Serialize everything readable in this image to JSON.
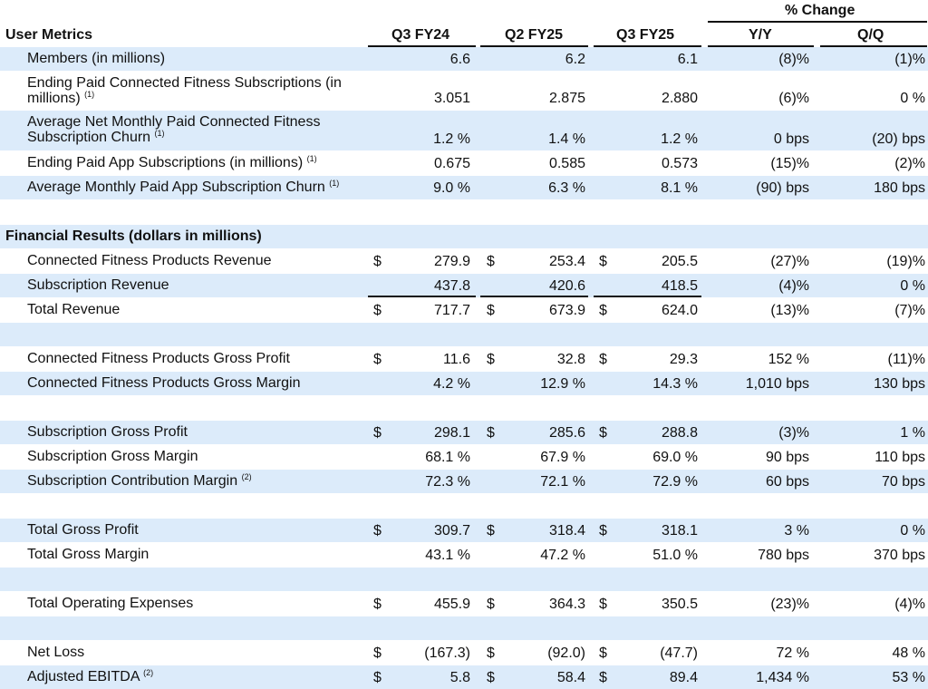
{
  "header": {
    "pct_change": "% Change",
    "section_title": "User Metrics",
    "col_q3fy24": "Q3 FY24",
    "col_q2fy25": "Q2 FY25",
    "col_q3fy25": "Q3 FY25",
    "col_yy": "Y/Y",
    "col_qq": "Q/Q"
  },
  "fin_title": "Financial Results (dollars in millions)",
  "rows": [
    {
      "key": "members",
      "shade": true,
      "label": [
        "Members (in millions)"
      ],
      "note": "",
      "dollar": false,
      "v": [
        "6.6",
        "6.2",
        "6.1"
      ],
      "yy": "(8)%",
      "qq": "(1)%"
    },
    {
      "key": "ending-paid-cf-subs",
      "shade": false,
      "label": [
        "Ending Paid Connected Fitness Subscriptions (in",
        "millions)"
      ],
      "note": "(1)",
      "dollar": false,
      "v": [
        "3.051",
        "2.875",
        "2.880"
      ],
      "yy": "(6)%",
      "qq": "0 %"
    },
    {
      "key": "avg-cf-churn",
      "shade": true,
      "label": [
        "Average Net Monthly Paid Connected Fitness",
        "Subscription Churn"
      ],
      "note": "(1)",
      "dollar": false,
      "v": [
        "1.2 %",
        "1.4 %",
        "1.2 %"
      ],
      "yy": "0 bps",
      "qq": "(20) bps"
    },
    {
      "key": "ending-paid-app-subs",
      "shade": false,
      "label": [
        "Ending Paid App Subscriptions (in millions)"
      ],
      "note": "(1)",
      "dollar": false,
      "v": [
        "0.675",
        "0.585",
        "0.573"
      ],
      "yy": "(15)%",
      "qq": "(2)%"
    },
    {
      "key": "avg-app-churn",
      "shade": true,
      "label": [
        "Average Monthly Paid App Subscription Churn"
      ],
      "note": "(1)",
      "dollar": false,
      "v": [
        "9.0 %",
        "6.3 %",
        "8.1 %"
      ],
      "yy": "(90) bps",
      "qq": "180 bps"
    },
    {
      "key": "cf-products-revenue",
      "shade": false,
      "label": [
        "Connected Fitness Products Revenue"
      ],
      "note": "",
      "dollar": true,
      "v": [
        "279.9",
        "253.4",
        "205.5"
      ],
      "yy": "(27)%",
      "qq": "(19)%"
    },
    {
      "key": "subscription-revenue",
      "shade": true,
      "label": [
        "Subscription Revenue"
      ],
      "note": "",
      "dollar": false,
      "v": [
        "437.8",
        "420.6",
        "418.5"
      ],
      "yy": "(4)%",
      "qq": "0 %"
    },
    {
      "key": "total-revenue",
      "shade": false,
      "label": [
        "Total Revenue"
      ],
      "note": "",
      "dollar": true,
      "v": [
        "717.7",
        "673.9",
        "624.0"
      ],
      "yy": "(13)%",
      "qq": "(7)%"
    },
    {
      "key": "cf-products-gross-profit",
      "shade": false,
      "label": [
        "Connected Fitness Products Gross Profit"
      ],
      "note": "",
      "dollar": true,
      "v": [
        "11.6",
        "32.8",
        "29.3"
      ],
      "yy": "152 %",
      "qq": "(11)%"
    },
    {
      "key": "cf-products-gross-margin",
      "shade": true,
      "label": [
        "Connected Fitness Products Gross Margin"
      ],
      "note": "",
      "dollar": false,
      "v": [
        "4.2 %",
        "12.9 %",
        "14.3 %"
      ],
      "yy": "1,010 bps",
      "qq": "130 bps"
    },
    {
      "key": "subscription-gross-profit",
      "shade": true,
      "label": [
        "Subscription Gross Profit"
      ],
      "note": "",
      "dollar": true,
      "v": [
        "298.1",
        "285.6",
        "288.8"
      ],
      "yy": "(3)%",
      "qq": "1 %"
    },
    {
      "key": "subscription-gross-margin",
      "shade": false,
      "label": [
        "Subscription Gross Margin"
      ],
      "note": "",
      "dollar": false,
      "v": [
        "68.1 %",
        "67.9 %",
        "69.0 %"
      ],
      "yy": "90 bps",
      "qq": "110 bps"
    },
    {
      "key": "subscription-contribution-margin",
      "shade": true,
      "label": [
        "Subscription Contribution Margin"
      ],
      "note": "(2)",
      "dollar": false,
      "v": [
        "72.3 %",
        "72.1 %",
        "72.9 %"
      ],
      "yy": "60 bps",
      "qq": "70 bps"
    },
    {
      "key": "total-gross-profit",
      "shade": true,
      "label": [
        "Total Gross Profit"
      ],
      "note": "",
      "dollar": true,
      "v": [
        "309.7",
        "318.4",
        "318.1"
      ],
      "yy": "3 %",
      "qq": "0 %"
    },
    {
      "key": "total-gross-margin",
      "shade": false,
      "label": [
        "Total Gross Margin"
      ],
      "note": "",
      "dollar": false,
      "v": [
        "43.1 %",
        "47.2 %",
        "51.0 %"
      ],
      "yy": "780 bps",
      "qq": "370 bps"
    },
    {
      "key": "total-operating-expenses",
      "shade": false,
      "label": [
        "Total Operating Expenses"
      ],
      "note": "",
      "dollar": true,
      "v": [
        "455.9",
        "364.3",
        "350.5"
      ],
      "yy": "(23)%",
      "qq": "(4)%"
    },
    {
      "key": "net-loss",
      "shade": false,
      "label": [
        "Net Loss"
      ],
      "note": "",
      "dollar": true,
      "v": [
        "(167.3)",
        "(92.0)",
        "(47.7)"
      ],
      "yy": "72 %",
      "qq": "48 %"
    },
    {
      "key": "adjusted-ebitda",
      "shade": true,
      "label": [
        "Adjusted EBITDA"
      ],
      "note": "(2)",
      "dollar": true,
      "v": [
        "5.8",
        "58.4",
        "89.4"
      ],
      "yy": "1,434 %",
      "qq": "53 %"
    }
  ],
  "dollar_sign": "$"
}
